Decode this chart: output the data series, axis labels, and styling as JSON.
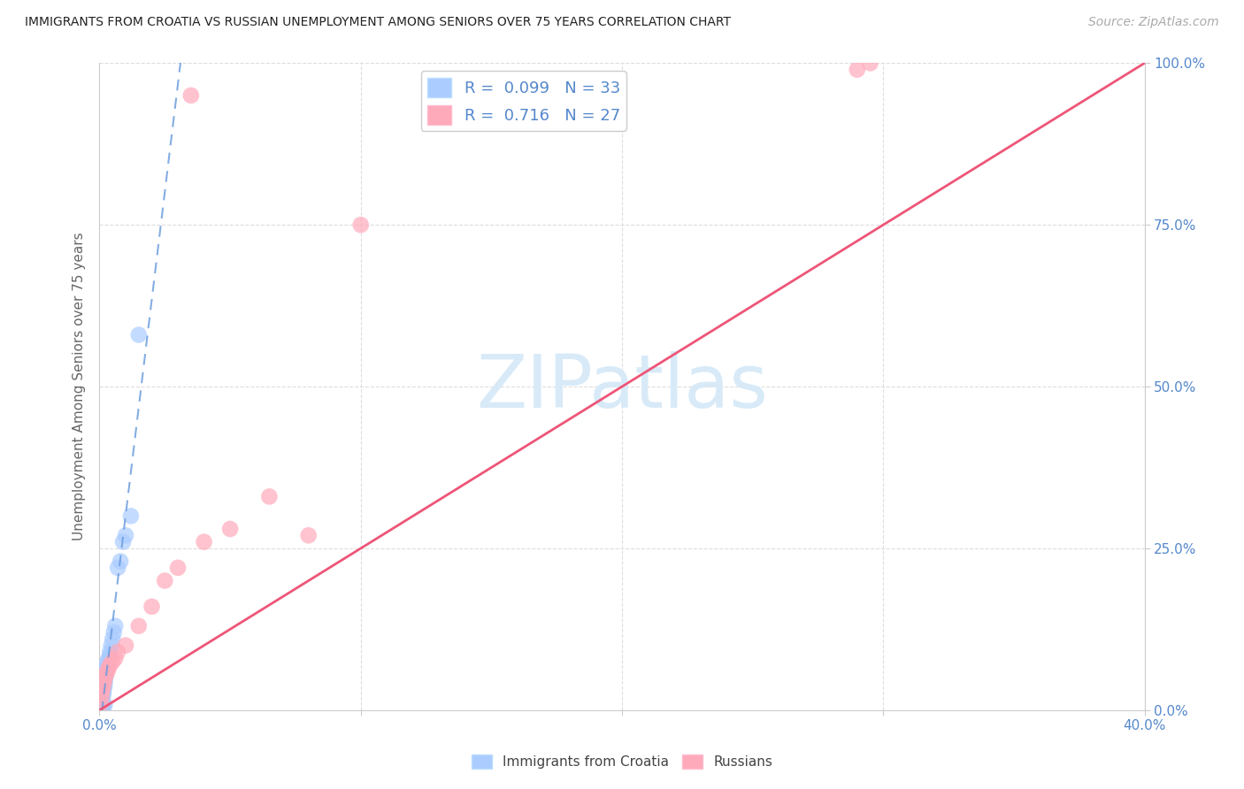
{
  "title": "IMMIGRANTS FROM CROATIA VS RUSSIAN UNEMPLOYMENT AMONG SENIORS OVER 75 YEARS CORRELATION CHART",
  "source": "Source: ZipAtlas.com",
  "ylabel": "Unemployment Among Seniors over 75 years",
  "xlim": [
    0.0,
    40.0
  ],
  "ylim": [
    0.0,
    100.0
  ],
  "ytick_values": [
    0,
    25,
    50,
    75,
    100
  ],
  "xtick_values": [
    0,
    10,
    20,
    30,
    40
  ],
  "r_blue": "0.099",
  "n_blue": "33",
  "r_pink": "0.716",
  "n_pink": "27",
  "color_blue_fill": "#aaccff",
  "color_blue_edge": "#aaccff",
  "color_blue_line": "#6699dd",
  "color_pink_fill": "#ffaabb",
  "color_pink_edge": "#ffaabb",
  "color_pink_line": "#ee5577",
  "color_axis_text": "#5588cc",
  "color_title": "#222222",
  "color_source": "#aaaaaa",
  "color_watermark": "#d8eaf8",
  "color_grid": "#dddddd",
  "blue_scatter_x": [
    0.05,
    0.08,
    0.1,
    0.12,
    0.15,
    0.15,
    0.18,
    0.2,
    0.2,
    0.22,
    0.25,
    0.25,
    0.28,
    0.3,
    0.3,
    0.35,
    0.4,
    0.4,
    0.45,
    0.5,
    0.55,
    0.6,
    0.7,
    0.8,
    0.9,
    1.0,
    1.2,
    1.5,
    0.1,
    0.05,
    0.08,
    0.15,
    0.2
  ],
  "blue_scatter_y": [
    0.5,
    1.0,
    1.5,
    2.0,
    2.5,
    3.0,
    3.5,
    4.0,
    4.5,
    5.0,
    5.5,
    6.0,
    6.5,
    7.0,
    7.5,
    8.0,
    8.5,
    9.0,
    10.0,
    11.0,
    12.0,
    13.0,
    22.0,
    23.0,
    26.0,
    27.0,
    30.0,
    58.0,
    0.3,
    0.2,
    0.4,
    0.6,
    0.8
  ],
  "pink_scatter_x": [
    0.05,
    0.08,
    0.1,
    0.12,
    0.15,
    0.18,
    0.2,
    0.25,
    0.3,
    0.35,
    0.4,
    0.5,
    0.6,
    0.7,
    1.0,
    1.5,
    2.0,
    2.5,
    3.0,
    4.0,
    5.0,
    6.5,
    8.0,
    10.0,
    3.5,
    29.0,
    29.5
  ],
  "pink_scatter_y": [
    1.0,
    2.0,
    3.0,
    3.5,
    4.0,
    4.5,
    5.0,
    5.5,
    6.0,
    6.5,
    7.0,
    7.5,
    8.0,
    9.0,
    10.0,
    13.0,
    16.0,
    20.0,
    22.0,
    26.0,
    28.0,
    33.0,
    27.0,
    75.0,
    95.0,
    99.0,
    100.0
  ]
}
